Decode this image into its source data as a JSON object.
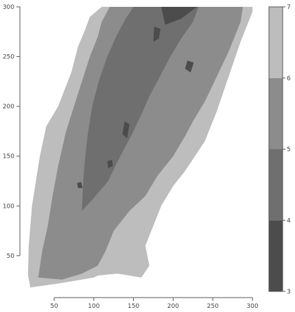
{
  "chart_data": {
    "type": "filled-contour",
    "title": "",
    "xlabel": "",
    "ylabel": "",
    "xlim": [
      12,
      300
    ],
    "ylim": [
      12,
      300
    ],
    "x_ticks": [
      50,
      100,
      150,
      200,
      250,
      300
    ],
    "y_ticks": [
      50,
      100,
      150,
      200,
      250,
      300
    ],
    "grid": false,
    "legend": "right colorbar",
    "levels": [
      {
        "from": 3,
        "to": 4,
        "color": "#4c4c4c"
      },
      {
        "from": 4,
        "to": 5,
        "color": "#6f6f6f"
      },
      {
        "from": 5,
        "to": 6,
        "color": "#8c8c8c"
      },
      {
        "from": 6,
        "to": 7,
        "color": "#bdbdbd"
      }
    ],
    "colorbar_ticks": [
      3,
      4,
      5,
      6,
      7
    ],
    "regions": [
      {
        "level": 6,
        "polygon": [
          [
            20,
            18
          ],
          [
            55,
            22
          ],
          [
            100,
            28
          ],
          [
            105,
            30
          ],
          [
            130,
            32
          ],
          [
            160,
            28
          ],
          [
            170,
            40
          ],
          [
            165,
            60
          ],
          [
            175,
            80
          ],
          [
            185,
            100
          ],
          [
            200,
            120
          ],
          [
            215,
            135
          ],
          [
            240,
            165
          ],
          [
            255,
            195
          ],
          [
            270,
            230
          ],
          [
            285,
            265
          ],
          [
            300,
            295
          ],
          [
            300,
            300
          ],
          [
            110,
            300
          ],
          [
            95,
            290
          ],
          [
            88,
            275
          ],
          [
            80,
            260
          ],
          [
            72,
            235
          ],
          [
            55,
            200
          ],
          [
            40,
            180
          ],
          [
            32,
            150
          ],
          [
            28,
            130
          ],
          [
            22,
            100
          ],
          [
            18,
            60
          ],
          [
            17,
            30
          ]
        ]
      },
      {
        "level": 5,
        "polygon": [
          [
            30,
            28
          ],
          [
            60,
            26
          ],
          [
            85,
            32
          ],
          [
            105,
            40
          ],
          [
            115,
            55
          ],
          [
            125,
            75
          ],
          [
            145,
            95
          ],
          [
            165,
            110
          ],
          [
            180,
            130
          ],
          [
            200,
            150
          ],
          [
            215,
            170
          ],
          [
            225,
            185
          ],
          [
            240,
            205
          ],
          [
            255,
            230
          ],
          [
            270,
            255
          ],
          [
            285,
            285
          ],
          [
            288,
            300
          ],
          [
            120,
            300
          ],
          [
            110,
            285
          ],
          [
            105,
            270
          ],
          [
            95,
            250
          ],
          [
            85,
            225
          ],
          [
            75,
            200
          ],
          [
            65,
            175
          ],
          [
            55,
            140
          ],
          [
            48,
            110
          ],
          [
            42,
            80
          ],
          [
            35,
            55
          ]
        ]
      },
      {
        "level": 4,
        "polygon": [
          [
            85,
            95
          ],
          [
            100,
            108
          ],
          [
            118,
            125
          ],
          [
            132,
            148
          ],
          [
            148,
            172
          ],
          [
            160,
            192
          ],
          [
            170,
            210
          ],
          [
            182,
            228
          ],
          [
            195,
            248
          ],
          [
            210,
            268
          ],
          [
            225,
            285
          ],
          [
            232,
            300
          ],
          [
            150,
            300
          ],
          [
            140,
            288
          ],
          [
            128,
            270
          ],
          [
            116,
            248
          ],
          [
            106,
            225
          ],
          [
            98,
            200
          ],
          [
            92,
            170
          ],
          [
            88,
            140
          ],
          [
            86,
            115
          ]
        ]
      },
      {
        "level": 3,
        "polygon": [
          [
            190,
            282
          ],
          [
            210,
            288
          ],
          [
            230,
            300
          ],
          [
            185,
            300
          ]
        ]
      },
      {
        "level": 3,
        "polygon": [
          [
            175,
            265
          ],
          [
            182,
            268
          ],
          [
            184,
            278
          ],
          [
            176,
            280
          ]
        ]
      },
      {
        "level": 3,
        "polygon": [
          [
            136,
            172
          ],
          [
            142,
            168
          ],
          [
            145,
            182
          ],
          [
            139,
            185
          ]
        ]
      },
      {
        "level": 3,
        "polygon": [
          [
            118,
            138
          ],
          [
            124,
            140
          ],
          [
            123,
            146
          ],
          [
            117,
            145
          ]
        ]
      },
      {
        "level": 3,
        "polygon": [
          [
            80,
            118
          ],
          [
            86,
            118
          ],
          [
            84,
            124
          ],
          [
            79,
            123
          ]
        ]
      },
      {
        "level": 3,
        "polygon": [
          [
            215,
            238
          ],
          [
            222,
            234
          ],
          [
            226,
            244
          ],
          [
            218,
            246
          ]
        ]
      }
    ]
  }
}
